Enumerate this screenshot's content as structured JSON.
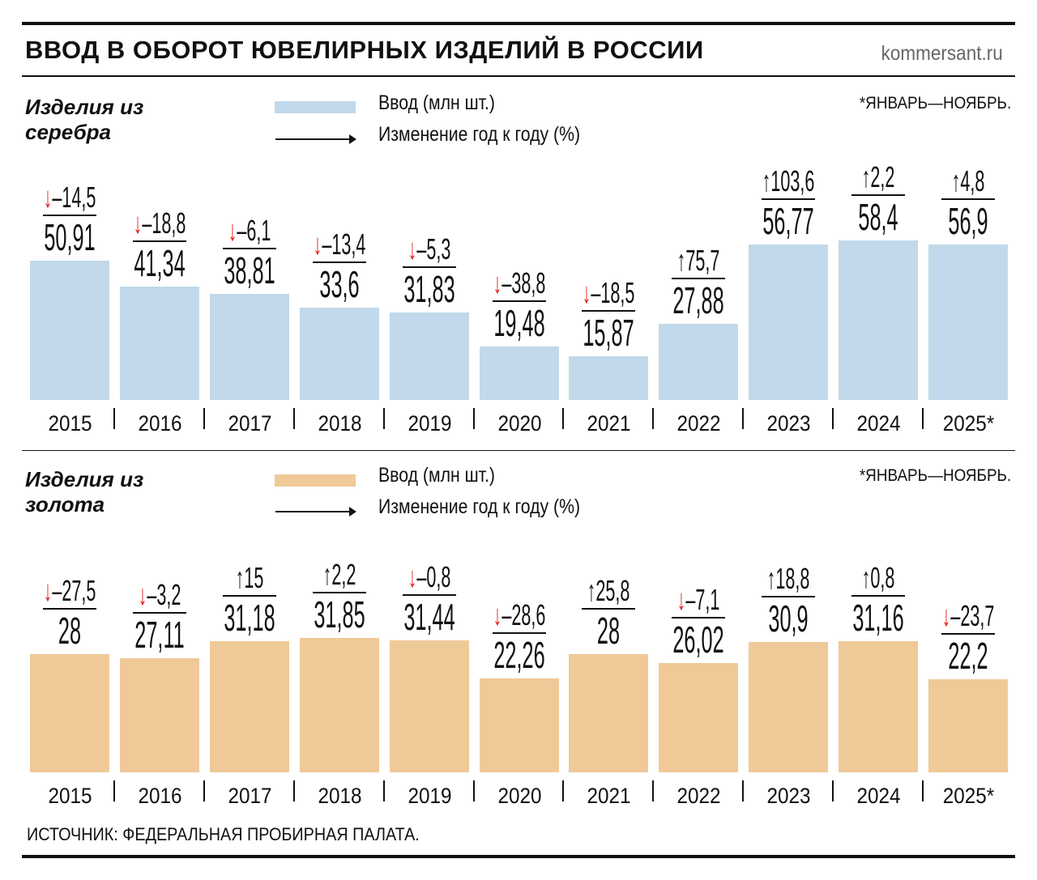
{
  "header": {
    "title": "ВВОД В ОБОРОТ ЮВЕЛИРНЫХ ИЗДЕЛИЙ В РОССИИ",
    "site": "kommersant.ru"
  },
  "colors": {
    "silver": "#c1d9ea",
    "gold": "#f0c998",
    "down": "#e3211d",
    "up": "#111111"
  },
  "legend": {
    "volume": "Ввод (млн шт.)",
    "change": "Изменение год к году (%)"
  },
  "source": "ИСТОЧНИК: ФЕДЕРАЛЬНАЯ ПРОБИРНАЯ ПАЛАТА.",
  "chart_data": [
    {
      "type": "bar",
      "title": "Изделия из серебра",
      "note": "*ЯНВАРЬ—НОЯБРЬ.",
      "categories": [
        "2015",
        "2016",
        "2017",
        "2018",
        "2019",
        "2020",
        "2021",
        "2022",
        "2023",
        "2024",
        "2025*"
      ],
      "values": [
        50.91,
        41.34,
        38.81,
        33.6,
        31.83,
        19.48,
        15.87,
        27.88,
        56.77,
        58.4,
        56.9
      ],
      "value_labels": [
        "50,91",
        "41,34",
        "38,81",
        "33,6",
        "31,83",
        "19,48",
        "15,87",
        "27,88",
        "56,77",
        "58,4",
        "56,9"
      ],
      "changes": [
        -14.5,
        -18.8,
        -6.1,
        -13.4,
        -5.3,
        -38.8,
        -18.5,
        75.7,
        103.6,
        2.2,
        4.8
      ],
      "change_labels": [
        "–14,5",
        "–18,8",
        "–6,1",
        "–13,4",
        "–5,3",
        "–38,8",
        "–18,5",
        "75,7",
        "103,6",
        "2,2",
        "4,8"
      ],
      "color": "#c1d9ea"
    },
    {
      "type": "bar",
      "title": "Изделия из золота",
      "note": "*ЯНВАРЬ—НОЯБРЬ.",
      "categories": [
        "2015",
        "2016",
        "2017",
        "2018",
        "2019",
        "2020",
        "2021",
        "2022",
        "2023",
        "2024",
        "2025*"
      ],
      "values": [
        28,
        27.11,
        31.18,
        31.85,
        31.44,
        22.26,
        28,
        26.02,
        30.9,
        31.16,
        22.2
      ],
      "value_labels": [
        "28",
        "27,11",
        "31,18",
        "31,85",
        "31,44",
        "22,26",
        "28",
        "26,02",
        "30,9",
        "31,16",
        "22,2"
      ],
      "changes": [
        -27.5,
        -3.2,
        15,
        2.2,
        -0.8,
        -28.6,
        25.8,
        -7.1,
        18.8,
        0.8,
        -23.7
      ],
      "change_labels": [
        "–27,5",
        "–3,2",
        "15",
        "2,2",
        "–0,8",
        "–28,6",
        "25,8",
        "–7,1",
        "18,8",
        "0,8",
        "–23,7"
      ],
      "color": "#f0c998"
    }
  ]
}
